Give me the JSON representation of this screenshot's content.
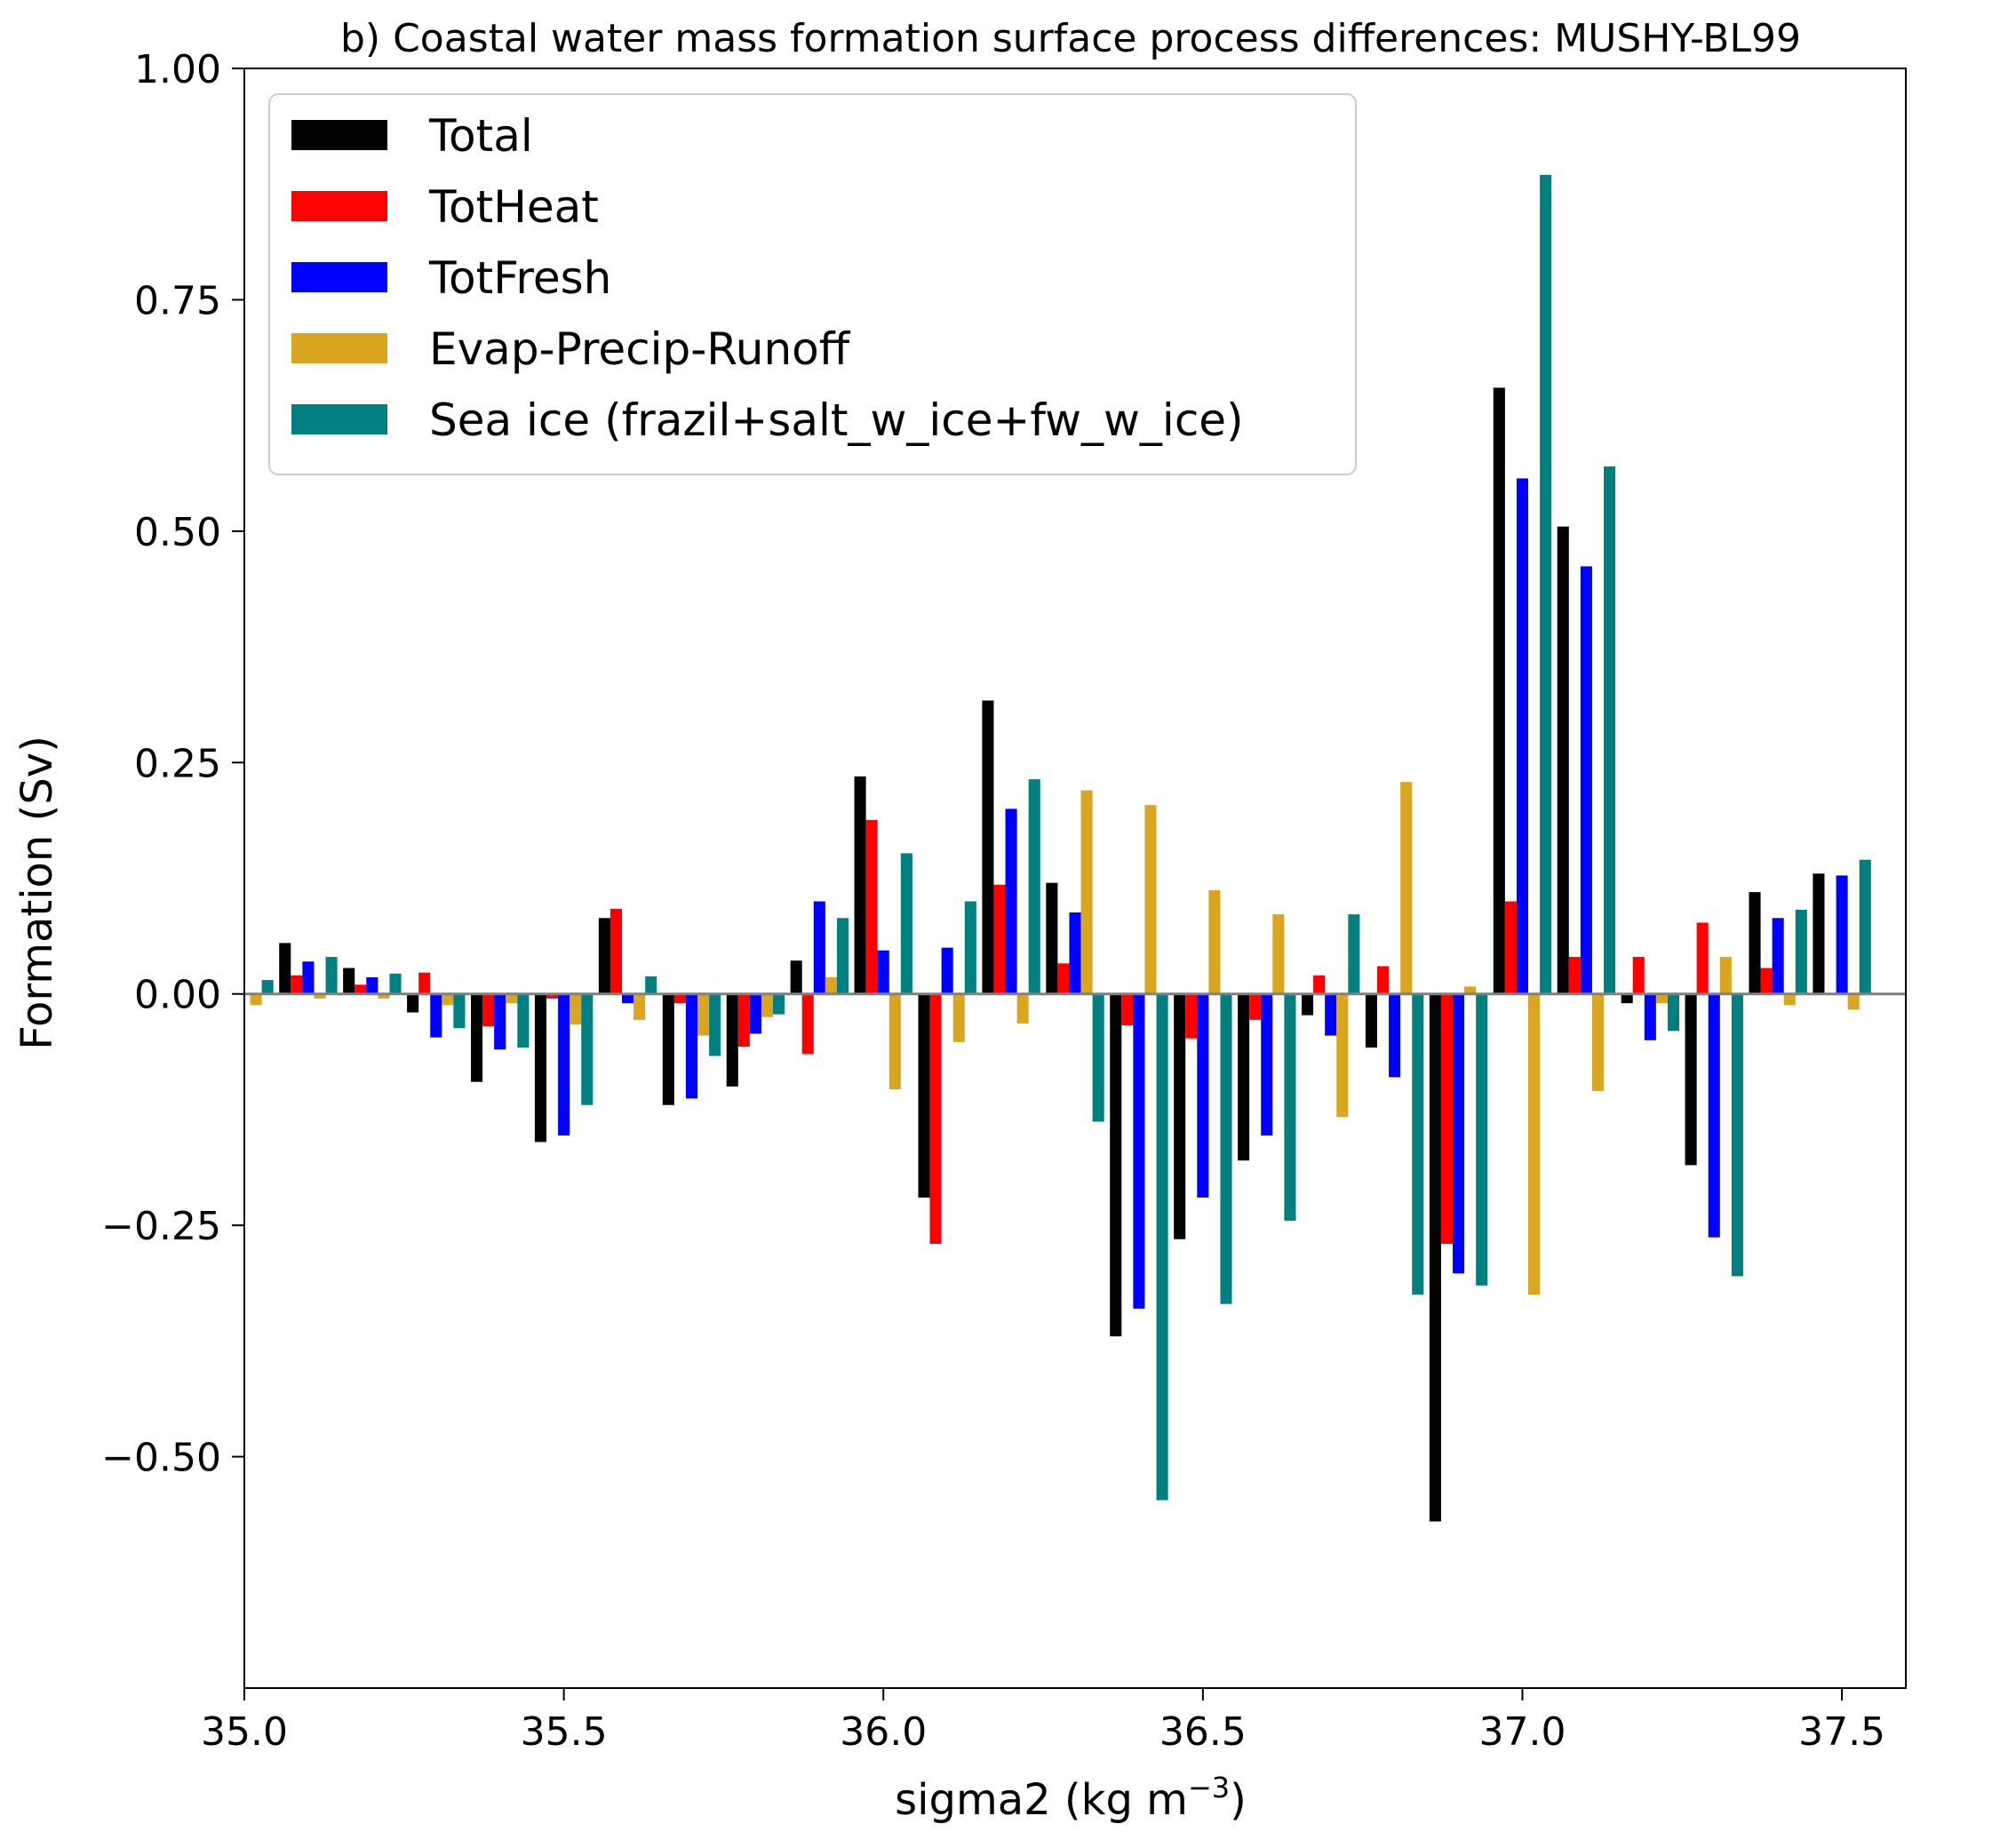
{
  "chart_data": {
    "type": "bar",
    "title": "b) Coastal water mass formation surface process differences: MUSHY-BL99",
    "xlabel": "sigma2 (kg m",
    "xlabel_exponent": "−3",
    "xlabel_suffix": ")",
    "ylabel": "Formation (Sv)",
    "xlim": [
      35.0,
      37.6
    ],
    "ylim": [
      -0.75,
      1.0
    ],
    "xticks": [
      "35.0",
      "35.5",
      "36.0",
      "36.5",
      "37.0",
      "37.5"
    ],
    "yticks": [
      "−0.50",
      "−0.25",
      "0.00",
      "0.25",
      "0.50",
      "0.75",
      "1.00"
    ],
    "legend_position": "upper-left",
    "grid": false,
    "categories": [
      35.0,
      35.1,
      35.2,
      35.3,
      35.4,
      35.5,
      35.6,
      35.7,
      35.8,
      35.9,
      36.0,
      36.1,
      36.2,
      36.3,
      36.4,
      36.5,
      36.6,
      36.7,
      36.8,
      36.9,
      37.0,
      37.1,
      37.2,
      37.3,
      37.4,
      37.5
    ],
    "series": [
      {
        "name": "Total",
        "color": "#000000",
        "values": [
          0.0,
          0.055,
          0.028,
          -0.02,
          -0.095,
          -0.16,
          0.082,
          -0.12,
          -0.1,
          0.036,
          0.235,
          -0.22,
          0.317,
          0.12,
          -0.37,
          -0.265,
          -0.18,
          -0.023,
          -0.058,
          -0.57,
          0.655,
          0.505,
          -0.01,
          -0.185,
          0.11,
          0.13
        ]
      },
      {
        "name": "TotHeat",
        "color": "#ff0000",
        "values": [
          0.0,
          0.02,
          0.01,
          0.023,
          -0.035,
          -0.005,
          0.092,
          -0.01,
          -0.057,
          -0.065,
          0.188,
          -0.27,
          0.118,
          0.033,
          -0.034,
          -0.048,
          -0.028,
          0.02,
          0.03,
          -0.27,
          0.1,
          0.04,
          0.04,
          0.077,
          0.028,
          0.0
        ]
      },
      {
        "name": "TotFresh",
        "color": "#0000ff",
        "values": [
          0.0,
          0.035,
          0.018,
          -0.047,
          -0.06,
          -0.153,
          -0.01,
          -0.113,
          -0.043,
          0.1,
          0.047,
          0.05,
          0.2,
          0.088,
          -0.34,
          -0.22,
          -0.153,
          -0.045,
          -0.09,
          -0.302,
          0.557,
          0.462,
          -0.05,
          -0.263,
          0.082,
          0.128
        ]
      },
      {
        "name": "Evap-Precip-Runoff",
        "color": "#daa520",
        "values": [
          -0.012,
          -0.005,
          -0.005,
          -0.012,
          -0.01,
          -0.033,
          -0.028,
          -0.045,
          -0.025,
          0.018,
          -0.103,
          -0.052,
          -0.032,
          0.22,
          0.204,
          0.112,
          0.086,
          -0.133,
          0.229,
          0.008,
          -0.325,
          -0.105,
          -0.01,
          0.04,
          -0.012,
          -0.017
        ]
      },
      {
        "name": "Sea ice (frazil+salt_w_ice+fw_w_ice)",
        "color": "#008080",
        "values": [
          0.015,
          0.04,
          0.022,
          -0.037,
          -0.058,
          -0.12,
          0.019,
          -0.067,
          -0.022,
          0.082,
          0.152,
          0.1,
          0.232,
          -0.138,
          -0.547,
          -0.335,
          -0.245,
          0.086,
          -0.325,
          -0.315,
          0.885,
          0.57,
          -0.04,
          -0.305,
          0.091,
          0.145
        ]
      }
    ]
  }
}
